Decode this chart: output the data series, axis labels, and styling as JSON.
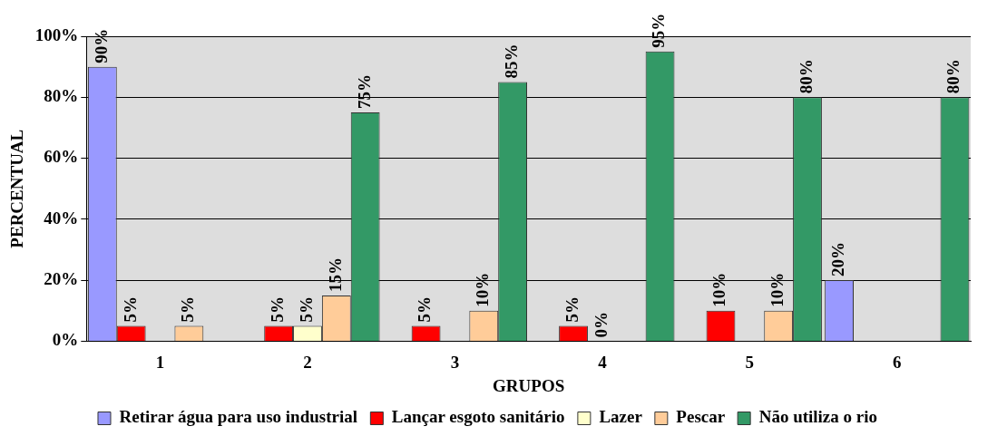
{
  "chart_data": {
    "type": "bar",
    "xlabel": "GRUPOS",
    "ylabel": "PERCENTUAL",
    "categories": [
      "1",
      "2",
      "3",
      "4",
      "5",
      "6"
    ],
    "series": [
      {
        "name": "Retirar água para uso industrial",
        "color": "#9999ff",
        "values": [
          90,
          null,
          null,
          null,
          null,
          20
        ],
        "value_labels": [
          "90%",
          null,
          null,
          null,
          null,
          "20%"
        ]
      },
      {
        "name": "Lançar esgoto sanitário",
        "color": "#ff0000",
        "values": [
          5,
          5,
          5,
          5,
          10,
          null
        ],
        "value_labels": [
          "5%",
          "5%",
          "5%",
          "5%",
          "10%",
          null
        ]
      },
      {
        "name": "Lazer",
        "color": "#ffffcc",
        "values": [
          null,
          5,
          null,
          0,
          null,
          null
        ],
        "value_labels": [
          null,
          "5%",
          null,
          "0%",
          null,
          null
        ]
      },
      {
        "name": "Pescar",
        "color": "#ffcc99",
        "values": [
          5,
          15,
          10,
          null,
          10,
          null
        ],
        "value_labels": [
          "5%",
          "15%",
          "10%",
          null,
          "10%",
          null
        ]
      },
      {
        "name": "Não utiliza o rio",
        "color": "#339966",
        "values": [
          null,
          75,
          85,
          95,
          80,
          80
        ],
        "value_labels": [
          null,
          "75%",
          "85%",
          "95%",
          "80%",
          "80%"
        ]
      }
    ],
    "ylim": [
      0,
      100
    ],
    "yticks": [
      {
        "value": 0,
        "label": "0%"
      },
      {
        "value": 20,
        "label": "20%"
      },
      {
        "value": 40,
        "label": "40%"
      },
      {
        "value": 60,
        "label": "60%"
      },
      {
        "value": 80,
        "label": "80%"
      },
      {
        "value": 100,
        "label": "100%"
      }
    ],
    "grid": "y",
    "legend": "bottom"
  }
}
